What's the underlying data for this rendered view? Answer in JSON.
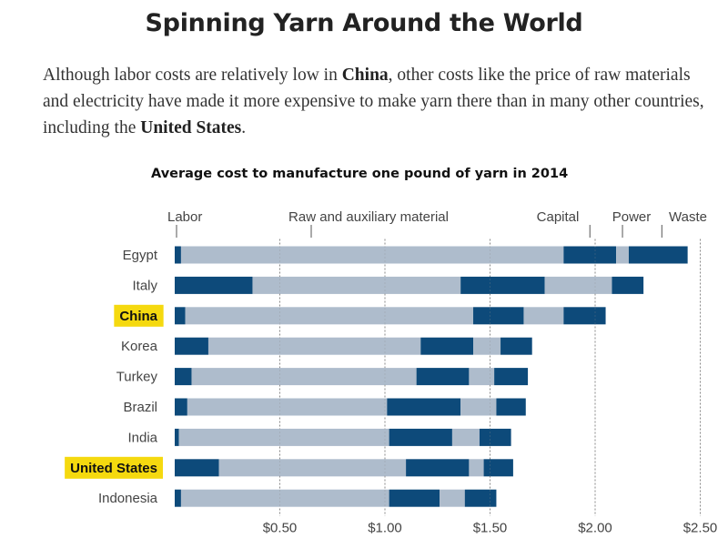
{
  "headline": "Spinning Yarn Around the World",
  "dek": {
    "part1": "Although labor costs are relatively low in ",
    "china": "China",
    "part2": ", other costs like the price of raw materials and electricity have made it more expensive to make yarn there than in many other countries, including the ",
    "us": "United States",
    "part3": "."
  },
  "colors": {
    "dark": "#0d4a7a",
    "light": "#aebccc",
    "highlight": "#f5d90f",
    "grid": "#888888"
  },
  "chart_data": {
    "type": "bar",
    "title": "Average cost to manufacture one pound of yarn in 2014",
    "components": [
      "Labor",
      "Raw and auxiliary material",
      "Capital",
      "Power",
      "Waste"
    ],
    "categories": [
      "Egypt",
      "Italy",
      "China",
      "Korea",
      "Turkey",
      "Brazil",
      "India",
      "United States",
      "Indonesia"
    ],
    "highlighted": [
      "China",
      "United States"
    ],
    "series": [
      {
        "name": "Labor",
        "values": [
          0.03,
          0.37,
          0.05,
          0.16,
          0.08,
          0.06,
          0.02,
          0.21,
          0.03
        ]
      },
      {
        "name": "Raw and auxiliary material",
        "values": [
          1.82,
          0.99,
          1.37,
          1.01,
          1.07,
          0.95,
          1.0,
          0.89,
          0.99
        ]
      },
      {
        "name": "Capital",
        "values": [
          0.25,
          0.4,
          0.24,
          0.25,
          0.25,
          0.35,
          0.3,
          0.3,
          0.24
        ]
      },
      {
        "name": "Power",
        "values": [
          0.06,
          0.32,
          0.19,
          0.13,
          0.12,
          0.17,
          0.13,
          0.07,
          0.12
        ]
      },
      {
        "name": "Waste",
        "values": [
          0.28,
          0.15,
          0.2,
          0.15,
          0.16,
          0.14,
          0.15,
          0.14,
          0.15
        ]
      }
    ],
    "x_ticks": [
      0.5,
      1.0,
      1.5,
      2.0,
      2.5
    ],
    "x_tick_labels": [
      "$0.50",
      "$1.00",
      "$1.50",
      "$2.00",
      "$2.50"
    ],
    "xlim": [
      0,
      2.5
    ],
    "grid": true,
    "legend": "top, labels above Egypt bar"
  }
}
